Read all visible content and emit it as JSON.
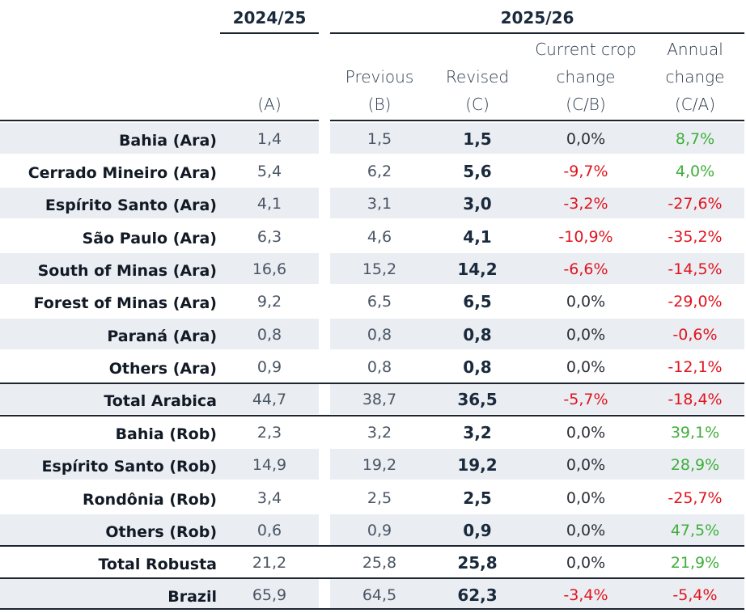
{
  "header": {
    "year_a": "2024/25",
    "year_b": "2025/26",
    "col_a": [
      "",
      "",
      "(A)"
    ],
    "col_b": [
      "",
      "Previous",
      "(B)"
    ],
    "col_c": [
      "",
      "Revised",
      "(C)"
    ],
    "col_d": [
      "Current crop",
      "change",
      "(C/B)"
    ],
    "col_e": [
      "Annual",
      "change",
      "(C/A)"
    ]
  },
  "rows": [
    {
      "label": "Bahia (Ara)",
      "a": "1,4",
      "b": "1,5",
      "c": "1,5",
      "d": "0,0%",
      "d_sign": "zero",
      "e": "8,7%",
      "e_sign": "pos"
    },
    {
      "label": "Cerrado Mineiro (Ara)",
      "a": "5,4",
      "b": "6,2",
      "c": "5,6",
      "d": "-9,7%",
      "d_sign": "neg",
      "e": "4,0%",
      "e_sign": "pos"
    },
    {
      "label": "Espírito Santo (Ara)",
      "a": "4,1",
      "b": "3,1",
      "c": "3,0",
      "d": "-3,2%",
      "d_sign": "neg",
      "e": "-27,6%",
      "e_sign": "neg"
    },
    {
      "label": "São Paulo (Ara)",
      "a": "6,3",
      "b": "4,6",
      "c": "4,1",
      "d": "-10,9%",
      "d_sign": "neg",
      "e": "-35,2%",
      "e_sign": "neg"
    },
    {
      "label": "South of Minas (Ara)",
      "a": "16,6",
      "b": "15,2",
      "c": "14,2",
      "d": "-6,6%",
      "d_sign": "neg",
      "e": "-14,5%",
      "e_sign": "neg"
    },
    {
      "label": "Forest of Minas (Ara)",
      "a": "9,2",
      "b": "6,5",
      "c": "6,5",
      "d": "0,0%",
      "d_sign": "zero",
      "e": "-29,0%",
      "e_sign": "neg"
    },
    {
      "label": "Paraná (Ara)",
      "a": "0,8",
      "b": "0,8",
      "c": "0,8",
      "d": "0,0%",
      "d_sign": "zero",
      "e": "-0,6%",
      "e_sign": "neg"
    },
    {
      "label": "Others (Ara)",
      "a": "0,9",
      "b": "0,8",
      "c": "0,8",
      "d": "0,0%",
      "d_sign": "zero",
      "e": "-12,1%",
      "e_sign": "neg"
    },
    {
      "label": "Total Arabica",
      "a": "44,7",
      "b": "38,7",
      "c": "36,5",
      "d": "-5,7%",
      "d_sign": "neg",
      "e": "-18,4%",
      "e_sign": "neg",
      "total": true
    },
    {
      "label": "Bahia (Rob)",
      "a": "2,3",
      "b": "3,2",
      "c": "3,2",
      "d": "0,0%",
      "d_sign": "zero",
      "e": "39,1%",
      "e_sign": "pos"
    },
    {
      "label": "Espírito Santo (Rob)",
      "a": "14,9",
      "b": "19,2",
      "c": "19,2",
      "d": "0,0%",
      "d_sign": "zero",
      "e": "28,9%",
      "e_sign": "pos"
    },
    {
      "label": "Rondônia (Rob)",
      "a": "3,4",
      "b": "2,5",
      "c": "2,5",
      "d": "0,0%",
      "d_sign": "zero",
      "e": "-25,7%",
      "e_sign": "neg"
    },
    {
      "label": "Others (Rob)",
      "a": "0,6",
      "b": "0,9",
      "c": "0,9",
      "d": "0,0%",
      "d_sign": "zero",
      "e": "47,5%",
      "e_sign": "pos"
    },
    {
      "label": "Total Robusta",
      "a": "21,2",
      "b": "25,8",
      "c": "25,8",
      "d": "0,0%",
      "d_sign": "zero",
      "e": "21,9%",
      "e_sign": "pos",
      "total": true
    },
    {
      "label": "Brazil",
      "a": "65,9",
      "b": "64,5",
      "c": "62,3",
      "d": "-3,4%",
      "d_sign": "neg",
      "e": "-5,4%",
      "e_sign": "neg",
      "total": true
    }
  ],
  "colors": {
    "negative": "#e0141e",
    "positive": "#3fae3a",
    "shade": "#eaeef3",
    "rule": "#1c2430"
  }
}
